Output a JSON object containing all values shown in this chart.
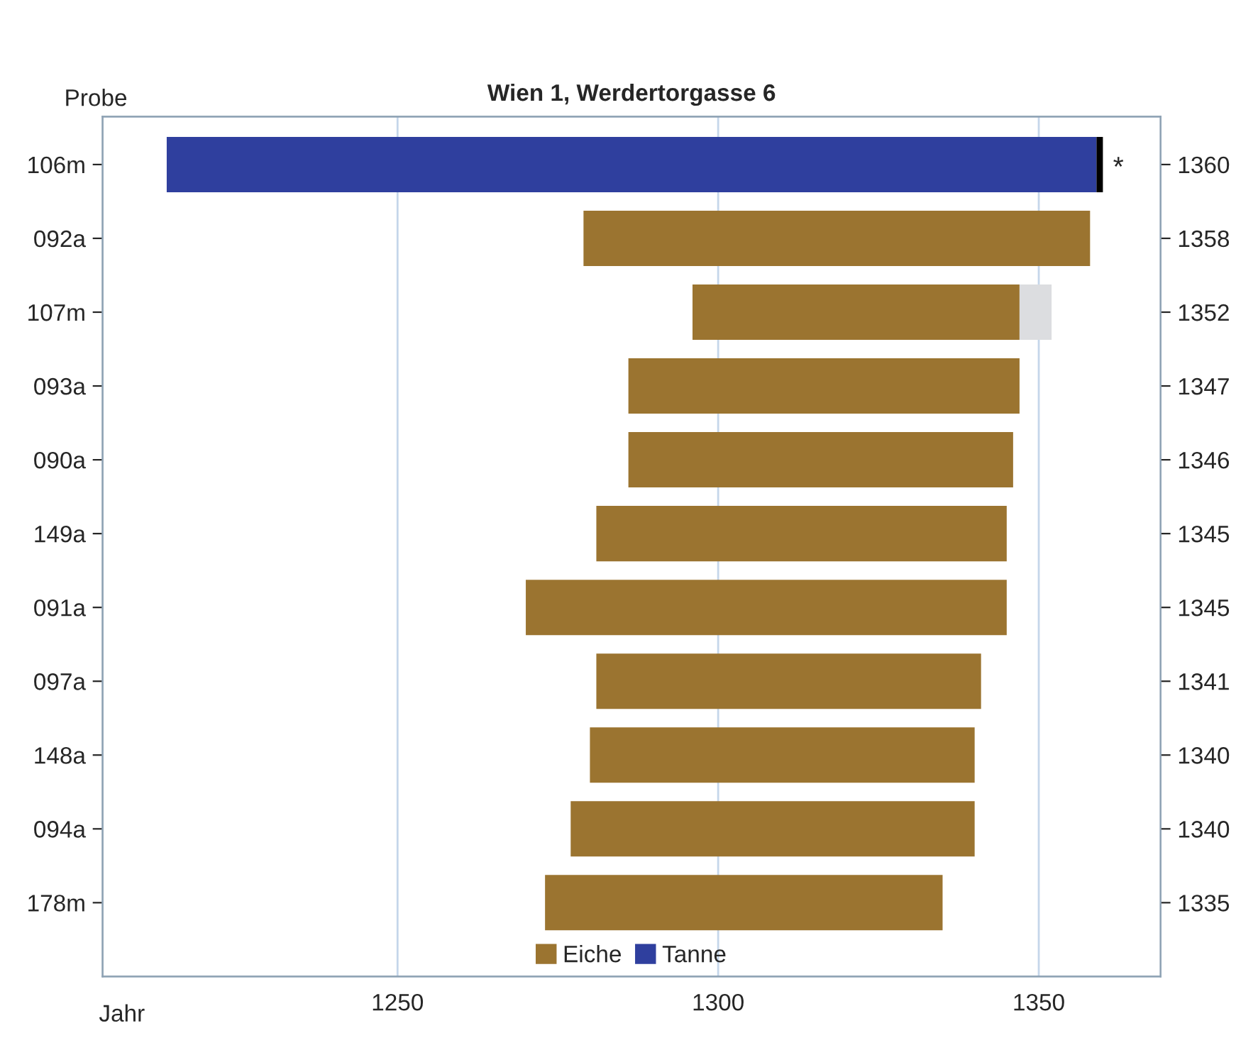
{
  "chart_data": {
    "type": "bar",
    "orientation": "horizontal",
    "title": "Wien 1, Werdertorgasse 6",
    "ylabel": "Probe",
    "xlabel": "Jahr",
    "categories": [
      "106m",
      "092a",
      "107m",
      "093a",
      "090a",
      "149a",
      "091a",
      "097a",
      "148a",
      "094a",
      "178m"
    ],
    "y2_categories": [
      "1360",
      "1358",
      "1352",
      "1347",
      "1346",
      "1345",
      "1345",
      "1341",
      "1340",
      "1340",
      "1335"
    ],
    "series": [
      {
        "name": "Eiche",
        "color": "#9b7430",
        "base": [
          null,
          1279,
          1296,
          1286,
          1286,
          1281,
          1270,
          1281,
          1280,
          1277,
          1273
        ],
        "values": [
          null,
          79,
          51,
          61,
          60,
          64,
          75,
          60,
          60,
          63,
          62
        ]
      },
      {
        "name": "Tanne",
        "color": "#2f3f9e",
        "base": [
          1214,
          null,
          null,
          null,
          null,
          null,
          null,
          null,
          null,
          null,
          null
        ],
        "values": [
          145,
          null,
          null,
          null,
          null,
          null,
          null,
          null,
          null,
          null,
          null
        ]
      },
      {
        "color": "#dcdde0",
        "base": [
          null,
          null,
          1347,
          null,
          null,
          null,
          null,
          null,
          null,
          null,
          null
        ],
        "values": [
          null,
          null,
          5,
          null,
          null,
          null,
          null,
          null,
          null,
          null,
          null
        ]
      },
      {
        "color": "#000000",
        "base": [
          1359,
          null,
          null,
          null,
          null,
          null,
          null,
          null,
          null,
          null,
          null
        ],
        "values": [
          1,
          null,
          null,
          null,
          null,
          null,
          null,
          null,
          null,
          null,
          null
        ]
      }
    ],
    "xlim": [
      1204,
      1369
    ],
    "xticks": [
      1250,
      1300,
      1350
    ],
    "grid": "x",
    "legend": "bottom",
    "annotations": [
      "*"
    ]
  }
}
